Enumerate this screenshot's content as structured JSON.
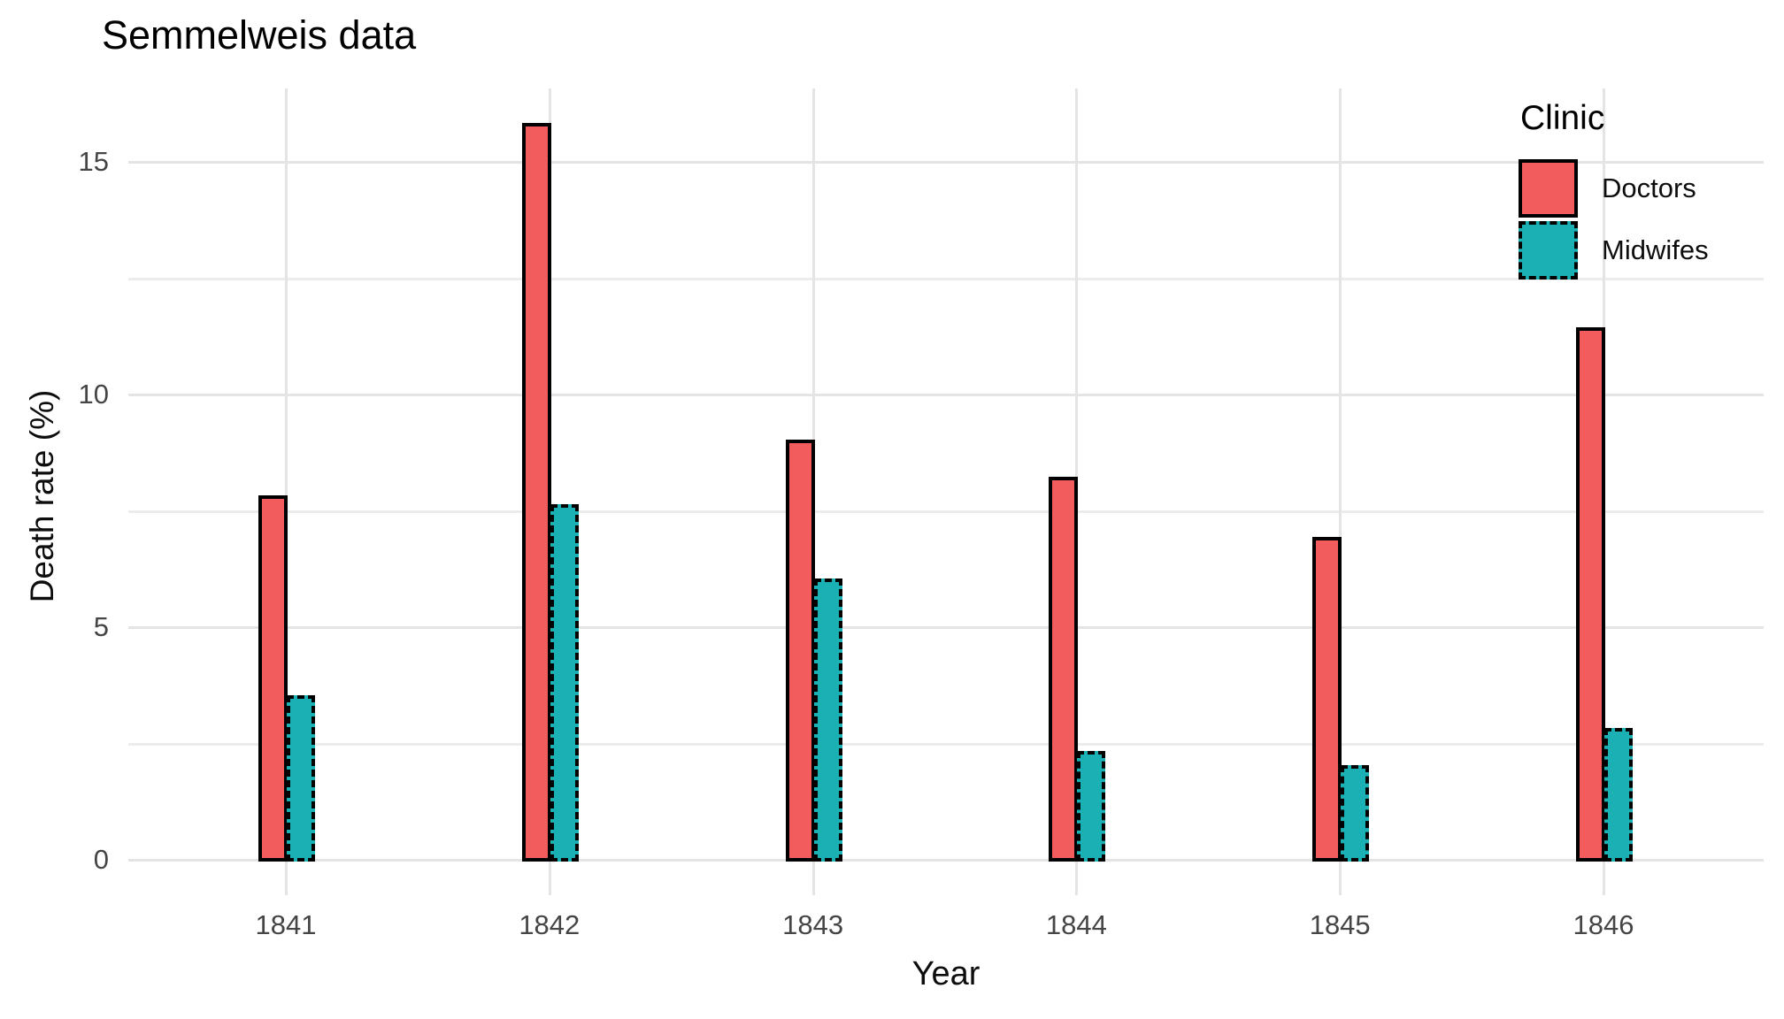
{
  "title": "Semmelweis data",
  "chart_data": {
    "type": "bar",
    "title": "Semmelweis data",
    "xlabel": "Year",
    "ylabel": "Death rate (%)",
    "categories": [
      "1841",
      "1842",
      "1843",
      "1844",
      "1845",
      "1846"
    ],
    "series": [
      {
        "name": "Doctors",
        "values": [
          7.8,
          15.8,
          9.0,
          8.2,
          6.9,
          11.4
        ],
        "fill": "#F25C5C",
        "outline_style": "solid"
      },
      {
        "name": "Midwifes",
        "values": [
          3.5,
          7.6,
          6.0,
          2.3,
          2.0,
          2.8
        ],
        "fill": "#1BB0B4",
        "outline_style": "dashed"
      }
    ],
    "ylim": [
      0,
      16.6
    ],
    "yticks": [
      0,
      5,
      10,
      15
    ],
    "yticks_minor": [
      2.5,
      7.5,
      12.5
    ],
    "grid": "major and minor horizontal, major vertical per category",
    "legend": {
      "title": "Clinic",
      "position": "inside top-right",
      "entries": [
        "Doctors",
        "Midwifes"
      ]
    },
    "colors": {
      "doctors_fill": "#F25C5C",
      "midwifes_fill": "#1BB0B4",
      "bar_outline": "#000000",
      "grid_major": "#E4E4E4",
      "grid_minor": "#ECECEC",
      "tick_label": "#454545",
      "background": "#FFFFFF"
    }
  }
}
